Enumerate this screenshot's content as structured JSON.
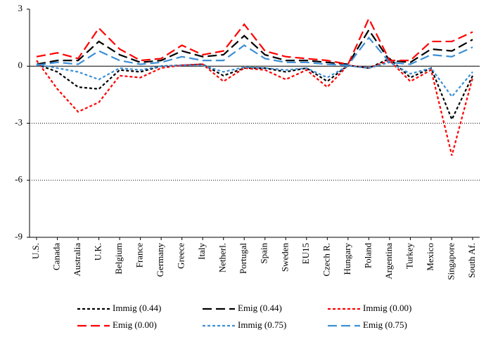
{
  "chart_data": {
    "type": "line",
    "categories": [
      "U.S.",
      "Canada",
      "Australia",
      "U.K.",
      "Belgium",
      "France",
      "Germany",
      "Greece",
      "Italy",
      "Netherl.",
      "Portugal",
      "Spain",
      "Sweden",
      "EU15",
      "Czech R.",
      "Hungary",
      "Poland",
      "Argentina",
      "Turkey",
      "Mexico",
      "Singapore",
      "South Af."
    ],
    "series": [
      {
        "name": "Immig (0.44)",
        "color": "#000000",
        "dash": "short",
        "values": [
          0.1,
          -0.3,
          -1.1,
          -1.2,
          -0.2,
          -0.3,
          0,
          0.05,
          0.1,
          -0.5,
          -0.1,
          -0.1,
          -0.3,
          -0.1,
          -0.8,
          0.05,
          -0.1,
          0.4,
          -0.6,
          -0.1,
          -2.8,
          -0.5
        ]
      },
      {
        "name": "Emig (0.44)",
        "color": "#000000",
        "dash": "long",
        "values": [
          0.1,
          0.3,
          0.3,
          1.3,
          0.6,
          0.2,
          0.3,
          0.8,
          0.5,
          0.6,
          1.6,
          0.6,
          0.3,
          0.3,
          0.2,
          0.1,
          1.9,
          0.3,
          0.2,
          0.9,
          0.8,
          1.4
        ]
      },
      {
        "name": "Immig (0.00)",
        "color": "#ff0000",
        "dash": "short",
        "values": [
          0.3,
          -1.2,
          -2.4,
          -1.9,
          -0.5,
          -0.6,
          -0.1,
          0.05,
          0.1,
          -0.8,
          -0.1,
          -0.2,
          -0.7,
          -0.2,
          -1.1,
          0.05,
          -0.1,
          0.3,
          -0.8,
          -0.2,
          -4.7,
          -0.6
        ]
      },
      {
        "name": "Emig (0.00)",
        "color": "#ff0000",
        "dash": "long",
        "values": [
          0.5,
          0.7,
          0.4,
          2.0,
          0.9,
          0.3,
          0.4,
          1.1,
          0.6,
          0.8,
          2.2,
          0.8,
          0.5,
          0.4,
          0.3,
          0.1,
          2.5,
          0.3,
          0.3,
          1.3,
          1.3,
          1.8
        ]
      },
      {
        "name": "Immig (0.75)",
        "color": "#3c8fd6",
        "dash": "short",
        "values": [
          0.1,
          -0.1,
          -0.3,
          -0.7,
          -0.1,
          -0.2,
          0,
          0.05,
          0.05,
          -0.3,
          -0.05,
          -0.1,
          -0.2,
          -0.1,
          -0.6,
          0.02,
          -0.1,
          0.2,
          -0.4,
          -0.1,
          -1.6,
          -0.3
        ]
      },
      {
        "name": "Emig (0.75)",
        "color": "#3c8fd6",
        "dash": "long",
        "values": [
          0.05,
          0.2,
          0.1,
          0.8,
          0.3,
          0.1,
          0.2,
          0.5,
          0.3,
          0.3,
          1.1,
          0.4,
          0.2,
          0.2,
          0.1,
          0.05,
          1.5,
          0.2,
          0.1,
          0.6,
          0.5,
          1.0
        ]
      }
    ],
    "ylim": [
      -9,
      3
    ],
    "yticks": [
      -9,
      -6,
      -3,
      0,
      3
    ],
    "grid": true,
    "legend": "bottom"
  }
}
